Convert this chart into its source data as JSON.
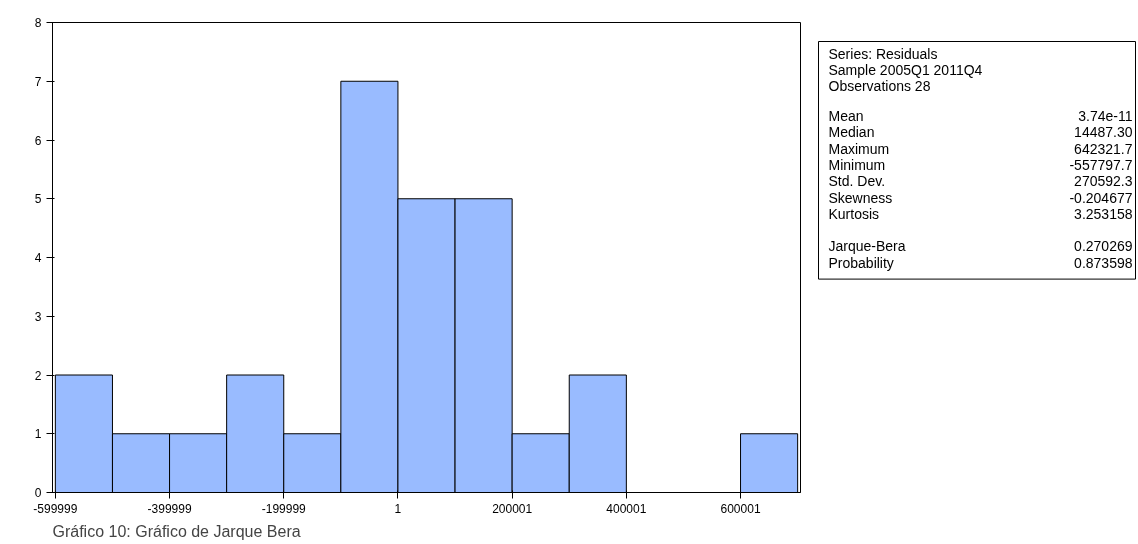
{
  "chart_data": [
    {
      "type": "histogram",
      "bins": [
        -599999,
        -499999,
        -399999,
        -299999,
        -199999,
        -99999,
        1,
        100001,
        200001,
        300001,
        400001,
        500001,
        600001,
        700001
      ],
      "values": [
        2,
        1,
        1,
        2,
        1,
        7,
        5,
        5,
        1,
        2,
        0,
        0,
        1
      ],
      "color": "#99bbff",
      "xlim": [
        -605000,
        705000
      ],
      "ylim": [
        0,
        8
      ],
      "xticks": [
        -599999,
        -399999,
        -199999,
        1,
        200001,
        400001,
        600001
      ],
      "yticks": [
        0,
        1,
        2,
        3,
        4,
        5,
        6,
        7,
        8
      ],
      "annotations": [
        "Gráfico 10: Gráfico de Jarque Bera"
      ]
    },
    {
      "type": "other",
      "annotations": [
        "Series: Residuals",
        "Sample 2005Q1 2011Q4",
        "Observations 28",
        "Mean",
        "3.74e-11",
        "Median",
        "14487.30",
        "Maximum",
        "642321.7",
        "Minimum",
        "-557797.7",
        "Std. Dev.",
        "270592.3",
        "Skewness",
        "-0.204677",
        "Kurtosis",
        "3.253158",
        "Jarque-Bera",
        "0.270269",
        "Probability",
        "0.873598"
      ]
    }
  ]
}
